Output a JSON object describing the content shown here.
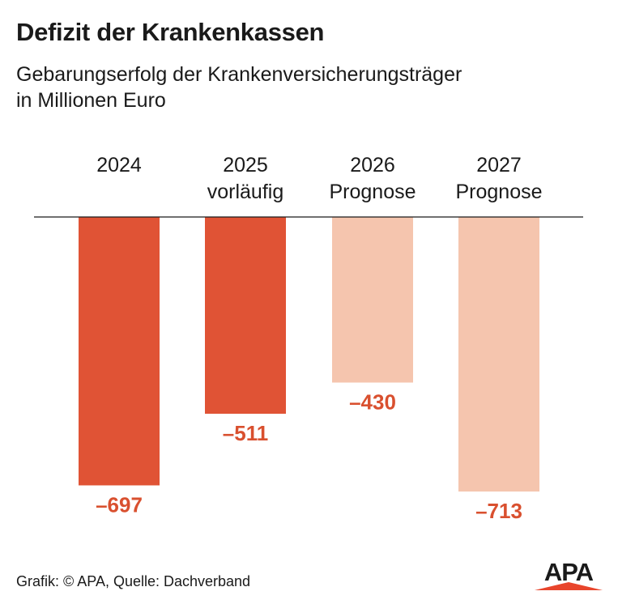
{
  "title": "Defizit der Krankenkassen",
  "subtitle": {
    "line1": "Gebarungserfolg der Krankenversicherungsträger",
    "line2": "in Millionen Euro"
  },
  "chart_data": {
    "type": "bar",
    "title": "Defizit der Krankenkassen",
    "subtitle": "Gebarungserfolg der Krankenversicherungsträger in Millionen Euro",
    "categories": [
      {
        "year": "2024",
        "note": ""
      },
      {
        "year": "2025",
        "note": "vorläufig"
      },
      {
        "year": "2026",
        "note": "Prognose"
      },
      {
        "year": "2027",
        "note": "Prognose"
      }
    ],
    "values": [
      -697,
      -511,
      -430,
      -713
    ],
    "labels": [
      "–697",
      "–511",
      "–430",
      "–713"
    ],
    "bar_colors": [
      "#e05335",
      "#e05335",
      "#f5c5ae",
      "#f5c5ae"
    ],
    "label_color": "#d9502f",
    "ylim": [
      -800,
      0
    ],
    "xlabel": "",
    "ylabel": "",
    "grid": false,
    "legend": "none"
  },
  "footer": "Grafik: © APA, Quelle: Dachverband",
  "logo": {
    "text": "APA",
    "text_color": "#1a1a1a",
    "accent_color": "#e8452c"
  }
}
